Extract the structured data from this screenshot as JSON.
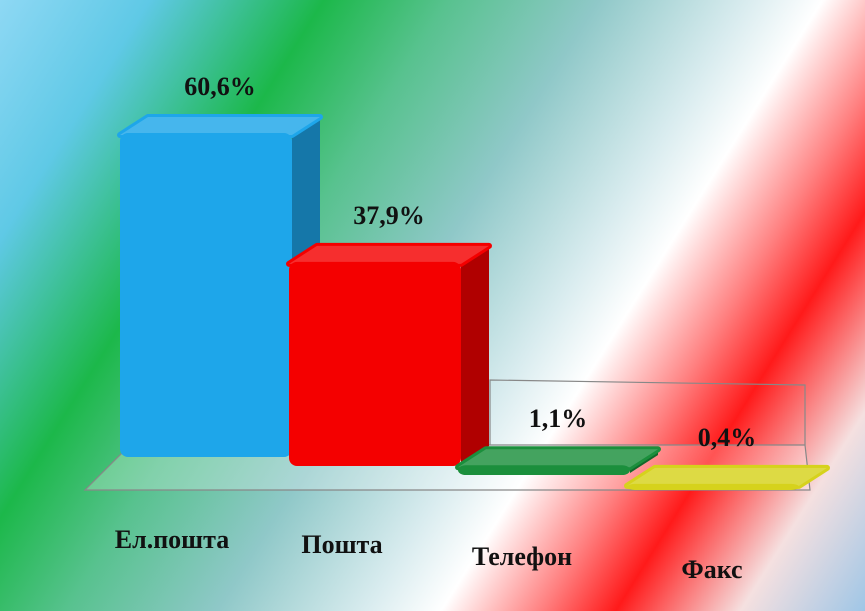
{
  "chart_data": {
    "type": "bar3d",
    "categories": [
      "Ел.пошта",
      "Пошта",
      "Телефон",
      "Факс"
    ],
    "values": [
      60.6,
      37.9,
      1.1,
      0.4
    ],
    "value_labels": [
      "60,6%",
      "37,9%",
      "1,1%",
      "0,4%"
    ],
    "colors": [
      "#1ea6ea",
      "#f40000",
      "#1b8f3c",
      "#d6d21c"
    ]
  }
}
